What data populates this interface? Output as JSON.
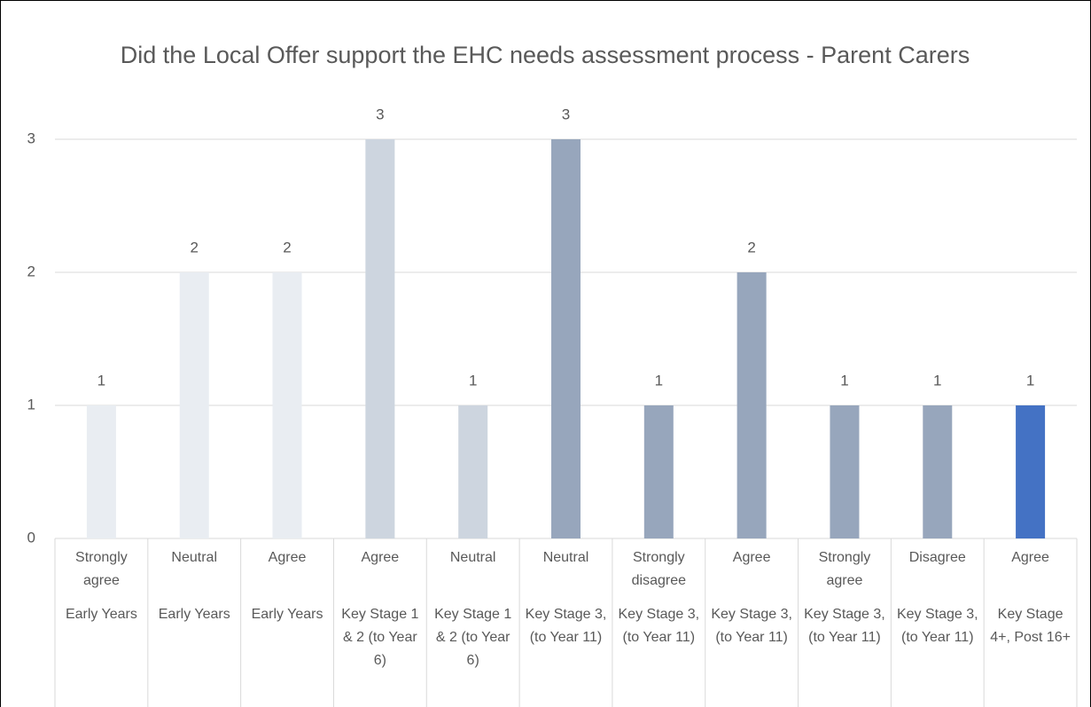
{
  "chart_data": {
    "type": "bar",
    "title": "Did the Local Offer support the EHC needs assessment process - Parent Carers",
    "categories": [
      "Strongly agree",
      "Neutral",
      "Agree",
      "Agree",
      "Neutral",
      "Neutral",
      "Strongly disagree",
      "Agree",
      "Strongly agree",
      "Disagree",
      "Agree"
    ],
    "groups": [
      "Early Years",
      "Early Years",
      "Early Years",
      "Key Stage 1 & 2 (to Year 6)",
      "Key Stage 1 & 2 (to Year 6)",
      "Key Stage 3, (to Year 11)",
      "Key Stage 3, (to Year 11)",
      "Key Stage 3, (to Year 11)",
      "Key Stage 3, (to Year 11)",
      "Key Stage 3, (to Year 11)",
      "Key Stage 4+, Post 16+"
    ],
    "values": [
      1,
      2,
      2,
      3,
      1,
      3,
      1,
      2,
      1,
      1,
      1
    ],
    "colors": [
      "#e9edf2",
      "#e9edf2",
      "#e9edf2",
      "#cdd5df",
      "#cdd5df",
      "#97a6bc",
      "#97a6bc",
      "#97a6bc",
      "#97a6bc",
      "#97a6bc",
      "#4472c4"
    ],
    "ylim": [
      0,
      3
    ],
    "yticks": [
      0,
      1,
      2,
      3
    ],
    "grid": true
  }
}
